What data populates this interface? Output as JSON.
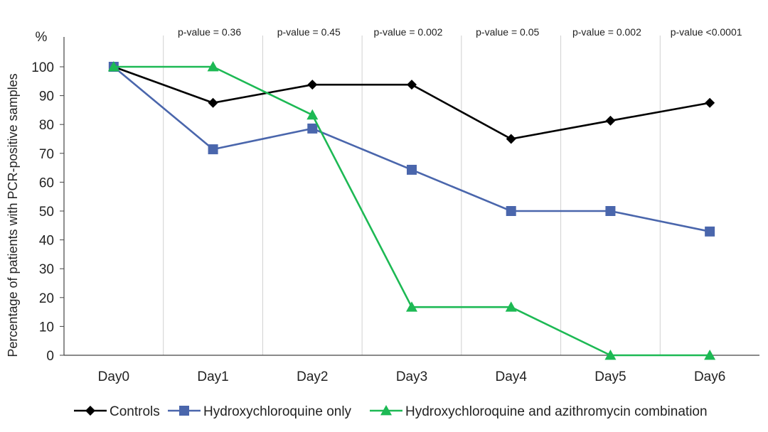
{
  "chart_data": {
    "type": "line",
    "ylabel": "Percentage of patients with PCR-positive samples",
    "y_unit": "%",
    "categories": [
      "Day0",
      "Day1",
      "Day2",
      "Day3",
      "Day4",
      "Day5",
      "Day6"
    ],
    "ylim": [
      0,
      100
    ],
    "yticks": [
      0,
      10,
      20,
      30,
      40,
      50,
      60,
      70,
      80,
      90,
      100
    ],
    "grid": "vertical lines between days",
    "legend_position": "bottom",
    "p_values": [
      "p-value = 0.36",
      "p-value = 0.45",
      "p-value = 0.002",
      "p-value = 0.05",
      "p-value = 0.002",
      "p-value <0.0001"
    ],
    "series": [
      {
        "name": "Controls",
        "color": "#000000",
        "marker": "diamond",
        "values": [
          100,
          87.5,
          93.8,
          93.8,
          75,
          81.3,
          87.5
        ]
      },
      {
        "name": "Hydroxychloroquine only",
        "color": "#4a66ac",
        "marker": "square",
        "values": [
          100,
          71.4,
          78.6,
          64.3,
          50,
          50,
          42.9
        ]
      },
      {
        "name": "Hydroxychloroquine and azithromycin combination",
        "color": "#1db954",
        "marker": "triangle",
        "values": [
          100,
          100,
          83.3,
          16.7,
          16.7,
          0,
          0
        ]
      }
    ]
  }
}
